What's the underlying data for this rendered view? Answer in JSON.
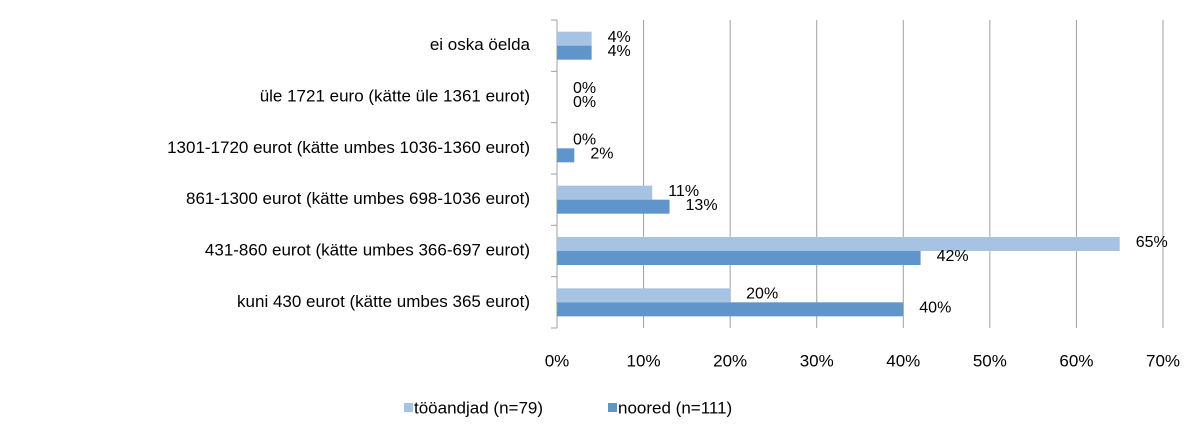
{
  "chart_data": {
    "type": "hbar",
    "categories": [
      "ei oska öelda",
      "üle 1721 euro (kätte üle 1361 eurot)",
      "1301-1720 eurot (kätte umbes 1036-1360 eurot)",
      "861-1300 eurot (kätte umbes 698-1036 eurot)",
      "431-860 eurot (kätte umbes 366-697 eurot)",
      "kuni 430 eurot (kätte umbes 365 eurot)"
    ],
    "series": [
      {
        "name": "tööandjad (n=79)",
        "color": "#a7c3e4",
        "values": [
          4,
          0,
          0,
          11,
          65,
          20
        ],
        "value_labels": [
          "4%",
          "0%",
          "0%",
          "11%",
          "65%",
          "20%"
        ]
      },
      {
        "name": "noored (n=111)",
        "color": "#5f95cb",
        "values": [
          4,
          0,
          2,
          13,
          42,
          40
        ],
        "value_labels": [
          "4%",
          "0%",
          "2%",
          "13%",
          "42%",
          "40%"
        ]
      }
    ],
    "xlim": [
      0,
      70
    ],
    "xticks": [
      {
        "value": 0,
        "label": "0%"
      },
      {
        "value": 10,
        "label": "10%"
      },
      {
        "value": 20,
        "label": "20%"
      },
      {
        "value": 30,
        "label": "30%"
      },
      {
        "value": 40,
        "label": "40%"
      },
      {
        "value": 50,
        "label": "50%"
      },
      {
        "value": 60,
        "label": "60%"
      },
      {
        "value": 70,
        "label": "70%"
      }
    ],
    "grid": true,
    "legend": "bottom"
  }
}
